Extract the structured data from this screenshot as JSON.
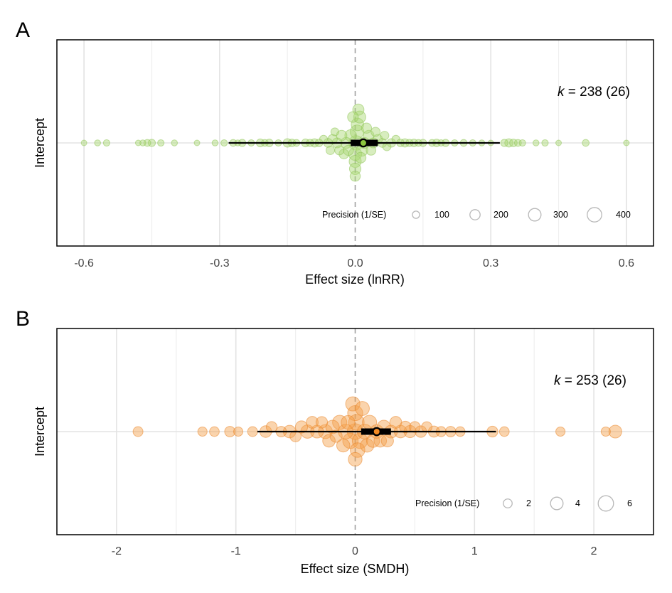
{
  "colors": {
    "panel_a_fill": "#a8d670",
    "panel_a_stroke": "#8fc45a",
    "panel_b_fill": "#f5a04a",
    "panel_b_stroke": "#e9862c",
    "estimate_a": "#8cc63f",
    "estimate_b": "#f28a24",
    "frame": "#000000",
    "gridline": "#e3e3e3",
    "zero_line": "#a0a0a0"
  },
  "chart_data": [
    {
      "type": "scatter",
      "panel_label": "A",
      "ylabel": "Intercept",
      "xlabel": "Effect size (lnRR)",
      "xlim": [
        -0.66,
        0.66
      ],
      "xticks": [
        -0.6,
        -0.3,
        0.0,
        0.3,
        0.6
      ],
      "xtick_labels": [
        "-0.6",
        "-0.3",
        "0.0",
        "0.3",
        "0.6"
      ],
      "grid": true,
      "annotation": {
        "italic": "k",
        "text": " = 238 (26)"
      },
      "estimate": 0.018,
      "confidence_interval": [
        -0.01,
        0.05
      ],
      "prediction_interval": [
        -0.28,
        0.32
      ],
      "legend": {
        "title": "Precision (1/SE)",
        "placement": "bottom-right",
        "items": [
          {
            "label": "100",
            "value": 100
          },
          {
            "label": "200",
            "value": 200
          },
          {
            "label": "300",
            "value": 300
          },
          {
            "label": "400",
            "value": 400
          }
        ]
      },
      "points": [
        {
          "x": -0.6,
          "precision": 60
        },
        {
          "x": -0.57,
          "precision": 70
        },
        {
          "x": -0.55,
          "precision": 80
        },
        {
          "x": -0.48,
          "precision": 60
        },
        {
          "x": -0.47,
          "precision": 70
        },
        {
          "x": -0.46,
          "precision": 90
        },
        {
          "x": -0.45,
          "precision": 100
        },
        {
          "x": -0.43,
          "precision": 80
        },
        {
          "x": -0.4,
          "precision": 70
        },
        {
          "x": -0.35,
          "precision": 60
        },
        {
          "x": -0.31,
          "precision": 70
        },
        {
          "x": -0.29,
          "precision": 80
        },
        {
          "x": -0.27,
          "precision": 90
        },
        {
          "x": -0.26,
          "precision": 70
        },
        {
          "x": -0.25,
          "precision": 100
        },
        {
          "x": -0.23,
          "precision": 80
        },
        {
          "x": -0.21,
          "precision": 120
        },
        {
          "x": -0.2,
          "precision": 90
        },
        {
          "x": -0.19,
          "precision": 110
        },
        {
          "x": -0.17,
          "precision": 80
        },
        {
          "x": -0.15,
          "precision": 140
        },
        {
          "x": -0.14,
          "precision": 110
        },
        {
          "x": -0.13,
          "precision": 90
        },
        {
          "x": -0.11,
          "precision": 120
        },
        {
          "x": -0.1,
          "precision": 100
        },
        {
          "x": -0.09,
          "precision": 130
        },
        {
          "x": -0.08,
          "precision": 110
        },
        {
          "x": -0.07,
          "precision": 120
        },
        {
          "x": -0.06,
          "precision": 150
        },
        {
          "x": -0.055,
          "precision": 140
        },
        {
          "x": -0.05,
          "precision": 170
        },
        {
          "x": -0.045,
          "precision": 120
        },
        {
          "x": -0.04,
          "precision": 190
        },
        {
          "x": -0.035,
          "precision": 160
        },
        {
          "x": -0.03,
          "precision": 210
        },
        {
          "x": -0.025,
          "precision": 180
        },
        {
          "x": -0.02,
          "precision": 230
        },
        {
          "x": -0.015,
          "precision": 200
        },
        {
          "x": -0.01,
          "precision": 260
        },
        {
          "x": -0.005,
          "precision": 220
        },
        {
          "x": 0.0,
          "precision": 320
        },
        {
          "x": 0.0,
          "precision": 280
        },
        {
          "x": 0.0,
          "precision": 250
        },
        {
          "x": 0.0,
          "precision": 200
        },
        {
          "x": 0.002,
          "precision": 400
        },
        {
          "x": 0.004,
          "precision": 360
        },
        {
          "x": 0.005,
          "precision": 300
        },
        {
          "x": 0.007,
          "precision": 240
        },
        {
          "x": 0.01,
          "precision": 280
        },
        {
          "x": 0.012,
          "precision": 220
        },
        {
          "x": 0.015,
          "precision": 260
        },
        {
          "x": 0.02,
          "precision": 230
        },
        {
          "x": 0.025,
          "precision": 200
        },
        {
          "x": 0.03,
          "precision": 210
        },
        {
          "x": 0.035,
          "precision": 180
        },
        {
          "x": 0.04,
          "precision": 190
        },
        {
          "x": 0.045,
          "precision": 160
        },
        {
          "x": 0.05,
          "precision": 170
        },
        {
          "x": 0.06,
          "precision": 150
        },
        {
          "x": 0.065,
          "precision": 140
        },
        {
          "x": 0.07,
          "precision": 130
        },
        {
          "x": 0.08,
          "precision": 140
        },
        {
          "x": 0.09,
          "precision": 120
        },
        {
          "x": 0.1,
          "precision": 110
        },
        {
          "x": 0.11,
          "precision": 130
        },
        {
          "x": 0.12,
          "precision": 100
        },
        {
          "x": 0.13,
          "precision": 110
        },
        {
          "x": 0.14,
          "precision": 90
        },
        {
          "x": 0.15,
          "precision": 100
        },
        {
          "x": 0.17,
          "precision": 90
        },
        {
          "x": 0.18,
          "precision": 110
        },
        {
          "x": 0.19,
          "precision": 80
        },
        {
          "x": 0.2,
          "precision": 100
        },
        {
          "x": 0.22,
          "precision": 80
        },
        {
          "x": 0.24,
          "precision": 90
        },
        {
          "x": 0.26,
          "precision": 80
        },
        {
          "x": 0.28,
          "precision": 70
        },
        {
          "x": 0.3,
          "precision": 60
        },
        {
          "x": 0.33,
          "precision": 100
        },
        {
          "x": 0.34,
          "precision": 130
        },
        {
          "x": 0.35,
          "precision": 110
        },
        {
          "x": 0.36,
          "precision": 90
        },
        {
          "x": 0.37,
          "precision": 80
        },
        {
          "x": 0.4,
          "precision": 70
        },
        {
          "x": 0.42,
          "precision": 80
        },
        {
          "x": 0.45,
          "precision": 60
        },
        {
          "x": 0.51,
          "precision": 90
        },
        {
          "x": 0.6,
          "precision": 60
        }
      ]
    },
    {
      "type": "scatter",
      "panel_label": "B",
      "ylabel": "Intercept",
      "xlabel": "Effect size (SMDH)",
      "xlim": [
        -2.5,
        2.5
      ],
      "xticks": [
        -2,
        -1,
        0,
        1,
        2
      ],
      "xtick_labels": [
        "-2",
        "-1",
        "0",
        "1",
        "2"
      ],
      "grid": true,
      "annotation": {
        "italic": "k",
        "text": " = 253 (26)"
      },
      "estimate": 0.18,
      "confidence_interval": [
        0.05,
        0.3
      ],
      "prediction_interval": [
        -0.82,
        1.18
      ],
      "legend": {
        "title": "Precision (1/SE)",
        "placement": "bottom-right",
        "items": [
          {
            "label": "2",
            "value": 2
          },
          {
            "label": "4",
            "value": 4
          },
          {
            "label": "6",
            "value": 6
          }
        ]
      },
      "points": [
        {
          "x": -1.82,
          "precision": 2.5
        },
        {
          "x": -1.28,
          "precision": 2.2
        },
        {
          "x": -1.18,
          "precision": 2.4
        },
        {
          "x": -1.05,
          "precision": 2.8
        },
        {
          "x": -0.98,
          "precision": 2.2
        },
        {
          "x": -0.86,
          "precision": 2.5
        },
        {
          "x": -0.75,
          "precision": 3.5
        },
        {
          "x": -0.7,
          "precision": 3.0
        },
        {
          "x": -0.62,
          "precision": 2.8
        },
        {
          "x": -0.55,
          "precision": 4.0
        },
        {
          "x": -0.5,
          "precision": 3.2
        },
        {
          "x": -0.45,
          "precision": 3.8
        },
        {
          "x": -0.4,
          "precision": 4.5
        },
        {
          "x": -0.36,
          "precision": 3.6
        },
        {
          "x": -0.32,
          "precision": 4.2
        },
        {
          "x": -0.28,
          "precision": 3.4
        },
        {
          "x": -0.25,
          "precision": 5.0
        },
        {
          "x": -0.22,
          "precision": 4.0
        },
        {
          "x": -0.19,
          "precision": 4.6
        },
        {
          "x": -0.16,
          "precision": 3.8
        },
        {
          "x": -0.13,
          "precision": 5.2
        },
        {
          "x": -0.1,
          "precision": 4.4
        },
        {
          "x": -0.08,
          "precision": 5.6
        },
        {
          "x": -0.06,
          "precision": 4.8
        },
        {
          "x": -0.04,
          "precision": 6.0
        },
        {
          "x": -0.02,
          "precision": 5.2
        },
        {
          "x": 0.0,
          "precision": 6.4
        },
        {
          "x": 0.0,
          "precision": 5.8
        },
        {
          "x": 0.0,
          "precision": 4.8
        },
        {
          "x": 0.01,
          "precision": 6.2
        },
        {
          "x": 0.02,
          "precision": 5.4
        },
        {
          "x": 0.04,
          "precision": 6.0
        },
        {
          "x": 0.06,
          "precision": 5.0
        },
        {
          "x": 0.08,
          "precision": 5.6
        },
        {
          "x": 0.1,
          "precision": 4.6
        },
        {
          "x": 0.12,
          "precision": 5.2
        },
        {
          "x": 0.15,
          "precision": 4.4
        },
        {
          "x": 0.18,
          "precision": 4.8
        },
        {
          "x": 0.21,
          "precision": 4.0
        },
        {
          "x": 0.24,
          "precision": 4.6
        },
        {
          "x": 0.27,
          "precision": 3.8
        },
        {
          "x": 0.3,
          "precision": 4.2
        },
        {
          "x": 0.34,
          "precision": 3.6
        },
        {
          "x": 0.38,
          "precision": 4.0
        },
        {
          "x": 0.42,
          "precision": 3.4
        },
        {
          "x": 0.46,
          "precision": 3.8
        },
        {
          "x": 0.5,
          "precision": 3.0
        },
        {
          "x": 0.55,
          "precision": 3.4
        },
        {
          "x": 0.6,
          "precision": 2.8
        },
        {
          "x": 0.66,
          "precision": 3.2
        },
        {
          "x": 0.72,
          "precision": 2.6
        },
        {
          "x": 0.8,
          "precision": 2.8
        },
        {
          "x": 0.88,
          "precision": 2.4
        },
        {
          "x": 1.15,
          "precision": 3.0
        },
        {
          "x": 1.25,
          "precision": 2.4
        },
        {
          "x": 1.72,
          "precision": 2.2
        },
        {
          "x": 2.1,
          "precision": 2.2
        },
        {
          "x": 2.18,
          "precision": 4.2
        }
      ]
    }
  ]
}
